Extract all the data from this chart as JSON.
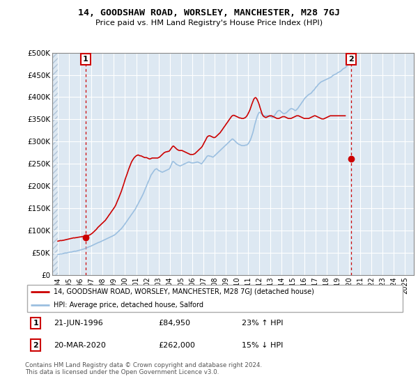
{
  "title": "14, GOODSHAW ROAD, WORSLEY, MANCHESTER, M28 7GJ",
  "subtitle": "Price paid vs. HM Land Registry's House Price Index (HPI)",
  "legend_line1": "14, GOODSHAW ROAD, WORSLEY, MANCHESTER, M28 7GJ (detached house)",
  "legend_line2": "HPI: Average price, detached house, Salford",
  "annotation1_label": "1",
  "annotation1_date": "21-JUN-1996",
  "annotation1_price": "£84,950",
  "annotation1_hpi": "23% ↑ HPI",
  "annotation2_label": "2",
  "annotation2_date": "20-MAR-2020",
  "annotation2_price": "£262,000",
  "annotation2_hpi": "15% ↓ HPI",
  "footer": "Contains HM Land Registry data © Crown copyright and database right 2024.\nThis data is licensed under the Open Government Licence v3.0.",
  "hpi_color": "#9bbfe0",
  "price_color": "#cc0000",
  "grid_color": "#c8d8e8",
  "chart_bg": "#dde8f2",
  "ylim": [
    0,
    500000
  ],
  "yticks": [
    0,
    50000,
    100000,
    150000,
    200000,
    250000,
    300000,
    350000,
    400000,
    450000,
    500000
  ],
  "ytick_labels": [
    "£0",
    "£50K",
    "£100K",
    "£150K",
    "£200K",
    "£250K",
    "£300K",
    "£350K",
    "£400K",
    "£450K",
    "£500K"
  ],
  "xlim_start": 1993.5,
  "xlim_end": 2025.8,
  "xticks": [
    1994,
    1995,
    1996,
    1997,
    1998,
    1999,
    2000,
    2001,
    2002,
    2003,
    2004,
    2005,
    2006,
    2007,
    2008,
    2009,
    2010,
    2011,
    2012,
    2013,
    2014,
    2015,
    2016,
    2017,
    2018,
    2019,
    2020,
    2021,
    2022,
    2023,
    2024,
    2025
  ],
  "xtick_labels": [
    "1994",
    "1995",
    "1996",
    "1997",
    "1998",
    "1999",
    "2000",
    "2001",
    "2002",
    "2003",
    "2004",
    "2005",
    "2006",
    "2007",
    "2008",
    "2009",
    "2010",
    "2011",
    "2012",
    "2013",
    "2014",
    "2015",
    "2016",
    "2017",
    "2018",
    "2019",
    "2020",
    "2021",
    "2022",
    "2023",
    "2024",
    "2025"
  ],
  "marker1_x": 1996.47,
  "marker1_y": 84950,
  "marker2_x": 2020.21,
  "marker2_y": 262000,
  "hpi_x": [
    1994.0,
    1994.08,
    1994.17,
    1994.25,
    1994.33,
    1994.42,
    1994.5,
    1994.58,
    1994.67,
    1994.75,
    1994.83,
    1994.92,
    1995.0,
    1995.08,
    1995.17,
    1995.25,
    1995.33,
    1995.42,
    1995.5,
    1995.58,
    1995.67,
    1995.75,
    1995.83,
    1995.92,
    1996.0,
    1996.08,
    1996.17,
    1996.25,
    1996.33,
    1996.42,
    1996.5,
    1996.58,
    1996.67,
    1996.75,
    1996.83,
    1996.92,
    1997.0,
    1997.08,
    1997.17,
    1997.25,
    1997.33,
    1997.42,
    1997.5,
    1997.58,
    1997.67,
    1997.75,
    1997.83,
    1997.92,
    1998.0,
    1998.08,
    1998.17,
    1998.25,
    1998.33,
    1998.42,
    1998.5,
    1998.58,
    1998.67,
    1998.75,
    1998.83,
    1998.92,
    1999.0,
    1999.08,
    1999.17,
    1999.25,
    1999.33,
    1999.42,
    1999.5,
    1999.58,
    1999.67,
    1999.75,
    1999.83,
    1999.92,
    2000.0,
    2000.08,
    2000.17,
    2000.25,
    2000.33,
    2000.42,
    2000.5,
    2000.58,
    2000.67,
    2000.75,
    2000.83,
    2000.92,
    2001.0,
    2001.08,
    2001.17,
    2001.25,
    2001.33,
    2001.42,
    2001.5,
    2001.58,
    2001.67,
    2001.75,
    2001.83,
    2001.92,
    2002.0,
    2002.08,
    2002.17,
    2002.25,
    2002.33,
    2002.42,
    2002.5,
    2002.58,
    2002.67,
    2002.75,
    2002.83,
    2002.92,
    2003.0,
    2003.08,
    2003.17,
    2003.25,
    2003.33,
    2003.42,
    2003.5,
    2003.58,
    2003.67,
    2003.75,
    2003.83,
    2003.92,
    2004.0,
    2004.08,
    2004.17,
    2004.25,
    2004.33,
    2004.42,
    2004.5,
    2004.58,
    2004.67,
    2004.75,
    2004.83,
    2004.92,
    2005.0,
    2005.08,
    2005.17,
    2005.25,
    2005.33,
    2005.42,
    2005.5,
    2005.58,
    2005.67,
    2005.75,
    2005.83,
    2005.92,
    2006.0,
    2006.08,
    2006.17,
    2006.25,
    2006.33,
    2006.42,
    2006.5,
    2006.58,
    2006.67,
    2006.75,
    2006.83,
    2006.92,
    2007.0,
    2007.08,
    2007.17,
    2007.25,
    2007.33,
    2007.42,
    2007.5,
    2007.58,
    2007.67,
    2007.75,
    2007.83,
    2007.92,
    2008.0,
    2008.08,
    2008.17,
    2008.25,
    2008.33,
    2008.42,
    2008.5,
    2008.58,
    2008.67,
    2008.75,
    2008.83,
    2008.92,
    2009.0,
    2009.08,
    2009.17,
    2009.25,
    2009.33,
    2009.42,
    2009.5,
    2009.58,
    2009.67,
    2009.75,
    2009.83,
    2009.92,
    2010.0,
    2010.08,
    2010.17,
    2010.25,
    2010.33,
    2010.42,
    2010.5,
    2010.58,
    2010.67,
    2010.75,
    2010.83,
    2010.92,
    2011.0,
    2011.08,
    2011.17,
    2011.25,
    2011.33,
    2011.42,
    2011.5,
    2011.58,
    2011.67,
    2011.75,
    2011.83,
    2011.92,
    2012.0,
    2012.08,
    2012.17,
    2012.25,
    2012.33,
    2012.42,
    2012.5,
    2012.58,
    2012.67,
    2012.75,
    2012.83,
    2012.92,
    2013.0,
    2013.08,
    2013.17,
    2013.25,
    2013.33,
    2013.42,
    2013.5,
    2013.58,
    2013.67,
    2013.75,
    2013.83,
    2013.92,
    2014.0,
    2014.08,
    2014.17,
    2014.25,
    2014.33,
    2014.42,
    2014.5,
    2014.58,
    2014.67,
    2014.75,
    2014.83,
    2014.92,
    2015.0,
    2015.08,
    2015.17,
    2015.25,
    2015.33,
    2015.42,
    2015.5,
    2015.58,
    2015.67,
    2015.75,
    2015.83,
    2015.92,
    2016.0,
    2016.08,
    2016.17,
    2016.25,
    2016.33,
    2016.42,
    2016.5,
    2016.58,
    2016.67,
    2016.75,
    2016.83,
    2016.92,
    2017.0,
    2017.08,
    2017.17,
    2017.25,
    2017.33,
    2017.42,
    2017.5,
    2017.58,
    2017.67,
    2017.75,
    2017.83,
    2017.92,
    2018.0,
    2018.08,
    2018.17,
    2018.25,
    2018.33,
    2018.42,
    2018.5,
    2018.58,
    2018.67,
    2018.75,
    2018.83,
    2018.92,
    2019.0,
    2019.08,
    2019.17,
    2019.25,
    2019.33,
    2019.42,
    2019.5,
    2019.58,
    2019.67,
    2019.75,
    2019.83,
    2019.92,
    2020.0,
    2020.08,
    2020.17,
    2020.25,
    2020.33,
    2020.42,
    2020.5,
    2020.58,
    2020.67,
    2020.75,
    2020.83,
    2020.92,
    2021.0,
    2021.08,
    2021.17,
    2021.25,
    2021.33,
    2021.42,
    2021.5,
    2021.58,
    2021.67,
    2021.75,
    2021.83,
    2021.92,
    2022.0,
    2022.08,
    2022.17,
    2022.25,
    2022.33,
    2022.42,
    2022.5,
    2022.58,
    2022.67,
    2022.75,
    2022.83,
    2022.92,
    2023.0,
    2023.08,
    2023.17,
    2023.25,
    2023.33,
    2023.42,
    2023.5,
    2023.58,
    2023.67,
    2023.75,
    2023.83,
    2023.92,
    2024.0,
    2024.08,
    2024.17,
    2024.25,
    2024.33,
    2024.42,
    2024.5,
    2024.58,
    2024.67,
    2024.75,
    2024.83,
    2024.92,
    2025.0
  ],
  "hpi_y": [
    46000,
    46500,
    47000,
    47500,
    47200,
    47800,
    48500,
    49000,
    49500,
    49200,
    49800,
    50500,
    51000,
    51500,
    51200,
    51800,
    52500,
    53000,
    53500,
    53200,
    53800,
    54500,
    55000,
    55500,
    56000,
    56500,
    57200,
    57800,
    58500,
    59200,
    60000,
    61000,
    62000,
    63000,
    63800,
    64500,
    65500,
    66500,
    67500,
    68500,
    69500,
    70500,
    71500,
    72500,
    73200,
    74000,
    75000,
    76000,
    77000,
    78000,
    79000,
    80000,
    81000,
    82000,
    83000,
    84000,
    85000,
    86000,
    87000,
    88000,
    89000,
    90500,
    92000,
    94000,
    96000,
    98000,
    100000,
    102000,
    104000,
    106500,
    109000,
    112000,
    115000,
    118000,
    121000,
    124000,
    127000,
    130000,
    133000,
    136000,
    139000,
    142000,
    145000,
    148000,
    152000,
    156000,
    160000,
    164000,
    168000,
    172000,
    176000,
    180000,
    185000,
    190000,
    195000,
    200000,
    205000,
    210000,
    215000,
    220000,
    225000,
    228000,
    231000,
    234000,
    237000,
    238000,
    239000,
    237000,
    235000,
    234000,
    233000,
    232000,
    231000,
    232000,
    233000,
    234000,
    235000,
    236000,
    237000,
    238000,
    240000,
    245000,
    250000,
    255000,
    255000,
    253000,
    251000,
    249000,
    248000,
    247000,
    246000,
    245000,
    246000,
    247000,
    248000,
    249000,
    250000,
    251000,
    252000,
    253000,
    254000,
    254000,
    253000,
    252000,
    252000,
    252000,
    252000,
    253000,
    253000,
    254000,
    254000,
    253000,
    252000,
    251000,
    250000,
    252000,
    255000,
    258000,
    261000,
    264000,
    267000,
    268000,
    268000,
    267000,
    267000,
    266000,
    265000,
    266000,
    268000,
    270000,
    272000,
    274000,
    276000,
    278000,
    280000,
    282000,
    284000,
    286000,
    288000,
    290000,
    292000,
    294000,
    296000,
    298000,
    300000,
    302000,
    304000,
    306000,
    305000,
    303000,
    301000,
    299000,
    297000,
    295000,
    294000,
    293000,
    292000,
    291000,
    291000,
    291000,
    291000,
    292000,
    292000,
    293000,
    295000,
    298000,
    302000,
    307000,
    313000,
    320000,
    328000,
    337000,
    345000,
    352000,
    358000,
    363000,
    366000,
    365000,
    363000,
    361000,
    359000,
    358000,
    358000,
    358000,
    358000,
    358000,
    358000,
    357000,
    356000,
    355000,
    354000,
    356000,
    358000,
    361000,
    364000,
    367000,
    369000,
    370000,
    370000,
    368000,
    366000,
    364000,
    363000,
    363000,
    364000,
    365000,
    367000,
    369000,
    371000,
    373000,
    374000,
    374000,
    373000,
    372000,
    370000,
    370000,
    372000,
    374000,
    377000,
    380000,
    383000,
    386000,
    389000,
    392000,
    395000,
    398000,
    400000,
    402000,
    404000,
    406000,
    407000,
    408000,
    410000,
    413000,
    415000,
    417000,
    420000,
    423000,
    425000,
    428000,
    430000,
    432000,
    434000,
    435000,
    436000,
    437000,
    438000,
    439000,
    440000,
    441000,
    442000,
    443000,
    444000,
    445000,
    447000,
    449000,
    450000,
    451000,
    452000,
    453000,
    455000,
    456000,
    457000,
    458000,
    460000,
    462000,
    464000,
    465000,
    466000,
    468000,
    470000
  ],
  "price_y": [
    76000,
    76500,
    77000,
    77500,
    77200,
    77800,
    78000,
    78500,
    79000,
    79500,
    80000,
    80500,
    81000,
    81500,
    82000,
    82500,
    83000,
    83500,
    83200,
    83800,
    84000,
    84500,
    84800,
    85000,
    85500,
    85800,
    86000,
    86500,
    87000,
    87500,
    84950,
    87000,
    88000,
    89000,
    90000,
    91000,
    92500,
    94000,
    96000,
    98000,
    100000,
    102000,
    104500,
    107000,
    109000,
    111000,
    113000,
    115000,
    117000,
    119000,
    121000,
    123000,
    126000,
    129000,
    132000,
    135000,
    138000,
    141000,
    144000,
    147000,
    150000,
    153000,
    157000,
    162000,
    167000,
    172000,
    177000,
    182000,
    188000,
    194000,
    200000,
    207000,
    214000,
    220000,
    226000,
    232000,
    238000,
    244000,
    249000,
    254000,
    258000,
    261000,
    264000,
    266000,
    268000,
    269000,
    270000,
    269000,
    268000,
    268000,
    267000,
    266000,
    265000,
    264000,
    264000,
    264000,
    263000,
    262000,
    261000,
    261000,
    262000,
    263000,
    263000,
    263000,
    263000,
    263000,
    263000,
    263000,
    264000,
    265000,
    267000,
    269000,
    271000,
    273000,
    275000,
    276000,
    277000,
    277000,
    278000,
    278000,
    280000,
    283000,
    286000,
    289000,
    290000,
    288000,
    286000,
    284000,
    282000,
    281000,
    280000,
    280000,
    280000,
    280000,
    279000,
    278000,
    277000,
    276000,
    275000,
    274000,
    273000,
    272000,
    271000,
    271000,
    271000,
    271000,
    272000,
    273000,
    275000,
    277000,
    279000,
    281000,
    283000,
    285000,
    287000,
    290000,
    294000,
    298000,
    302000,
    306000,
    310000,
    312000,
    313000,
    313000,
    312000,
    311000,
    310000,
    309000,
    309000,
    310000,
    312000,
    314000,
    316000,
    318000,
    320000,
    323000,
    326000,
    329000,
    332000,
    335000,
    338000,
    341000,
    344000,
    347000,
    350000,
    353000,
    356000,
    358000,
    359000,
    359000,
    358000,
    357000,
    356000,
    355000,
    354000,
    353000,
    353000,
    352000,
    352000,
    352000,
    353000,
    354000,
    356000,
    359000,
    363000,
    367000,
    372000,
    378000,
    384000,
    390000,
    395000,
    398000,
    399000,
    397000,
    393000,
    388000,
    382000,
    375000,
    368000,
    362000,
    358000,
    356000,
    355000,
    354000,
    355000,
    356000,
    357000,
    358000,
    358000,
    358000,
    357000,
    356000,
    355000,
    354000,
    353000,
    352000,
    352000,
    352000,
    353000,
    354000,
    355000,
    356000,
    356000,
    356000,
    355000,
    354000,
    353000,
    352000,
    352000,
    352000,
    352000,
    353000,
    354000,
    355000,
    356000,
    357000,
    358000,
    358000,
    358000,
    357000,
    356000,
    355000,
    354000,
    353000,
    352000,
    352000,
    352000,
    352000,
    352000,
    352000,
    353000,
    354000,
    355000,
    356000,
    357000,
    358000,
    358000,
    357000,
    356000,
    355000,
    354000,
    353000,
    352000,
    351000,
    351000,
    351000,
    352000,
    353000,
    354000,
    355000,
    356000,
    357000,
    358000,
    358000,
    358000,
    358000,
    358000,
    358000,
    358000,
    358000,
    358000,
    358000,
    358000,
    358000,
    358000,
    358000,
    358000,
    358000,
    358000
  ]
}
